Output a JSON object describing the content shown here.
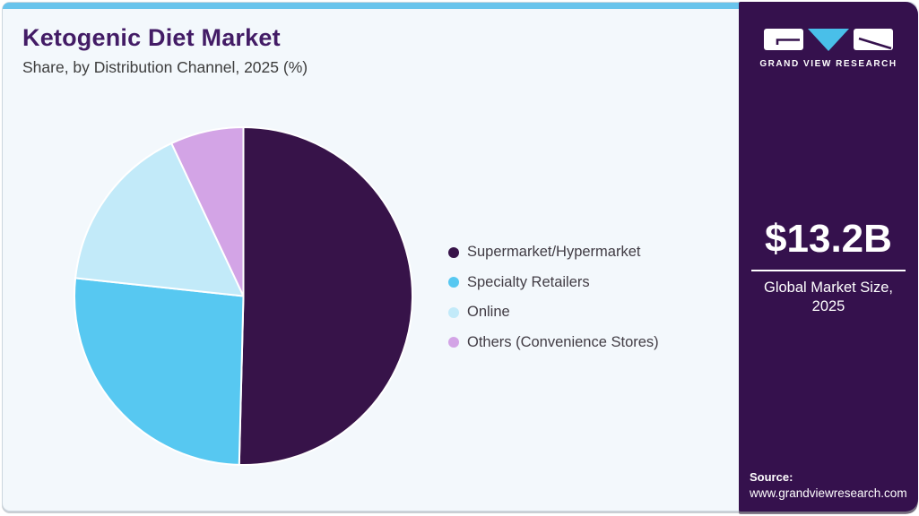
{
  "header": {
    "title": "Ketogenic Diet Market",
    "subtitle": "Share, by Distribution Channel, 2025 (%)"
  },
  "chart_data": {
    "type": "pie",
    "title": "Ketogenic Diet Market Share, by Distribution Channel, 2025 (%)",
    "labels": [
      "Supermarket/Hypermarket",
      "Specialty Retailers",
      "Online",
      "Others (Convenience Stores)"
    ],
    "values": [
      50.4,
      26.3,
      16.3,
      7.0
    ],
    "unit": "%",
    "colors": [
      "#371349",
      "#57c8f1",
      "#c2eaf9",
      "#d3a4e6"
    ],
    "start_angle_deg": 0,
    "direction": "clockwise",
    "legend_position": "right",
    "separator_color": "#ffffff"
  },
  "sidebar": {
    "brand": {
      "name": "GRAND VIEW RESEARCH"
    },
    "market_size": {
      "value": "$13.2B",
      "caption": "Global Market Size, 2025"
    },
    "source": {
      "label": "Source:",
      "url": "www.grandviewresearch.com"
    },
    "colors": {
      "background": "#35114d",
      "accent": "#49bfe9",
      "text": "#ffffff"
    }
  },
  "theme": {
    "top_bar": "#69c4ec",
    "card_bg": "#f3f8fc",
    "card_border": "#ccd6de",
    "title_color": "#431c66",
    "subtitle_color": "#3d3d3d",
    "legend_text": "#413c44"
  }
}
